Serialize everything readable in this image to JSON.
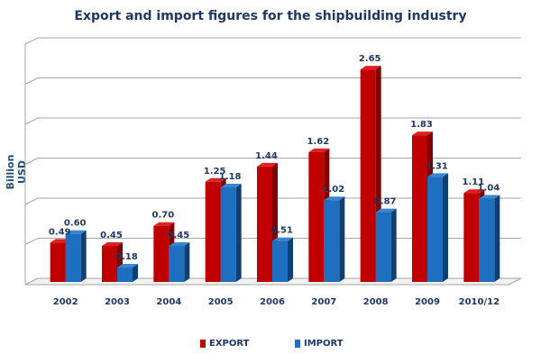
{
  "chart_data": {
    "type": "bar",
    "title": "Export and import figures for the shipbuilding industry",
    "xlabel": "",
    "ylabel": "Billion USD",
    "ylim": [
      0,
      3.0
    ],
    "ytick_step": 0.5,
    "grid": true,
    "legend_position": "bottom",
    "categories": [
      "2002",
      "2003",
      "2004",
      "2005",
      "2006",
      "2007",
      "2008",
      "2009",
      "2010/12"
    ],
    "series": [
      {
        "name": "EXPORT",
        "color": "#c00000",
        "values": [
          0.49,
          0.45,
          0.7,
          1.25,
          1.44,
          1.62,
          2.65,
          1.83,
          1.11
        ],
        "labels": [
          "0.49",
          "0.45",
          "0.70",
          "1.25",
          "1.44",
          "1.62",
          "2.65",
          "1.83",
          "1.11"
        ]
      },
      {
        "name": "IMPORT",
        "color": "#1f6fc0",
        "values": [
          0.6,
          0.18,
          0.45,
          1.18,
          0.51,
          1.02,
          0.87,
          1.31,
          1.04
        ],
        "labels": [
          "0.60",
          "0.18",
          "0.45",
          "1.18",
          "0.51",
          "1.02",
          "0.87",
          "1.31",
          "1.04"
        ]
      }
    ]
  }
}
